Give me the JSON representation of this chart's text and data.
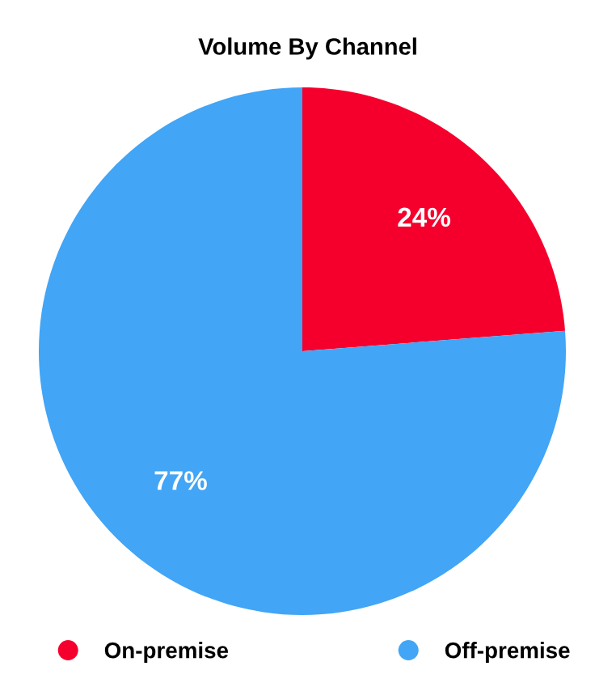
{
  "chart_data": {
    "type": "pie",
    "title": "Volume By Channel",
    "categories": [
      "On-premise",
      "Off-premise"
    ],
    "values": [
      24,
      77
    ],
    "colors": [
      "#f5002d",
      "#42a5f5"
    ],
    "value_labels": [
      "24%",
      "77%"
    ],
    "legend": "bottom"
  }
}
